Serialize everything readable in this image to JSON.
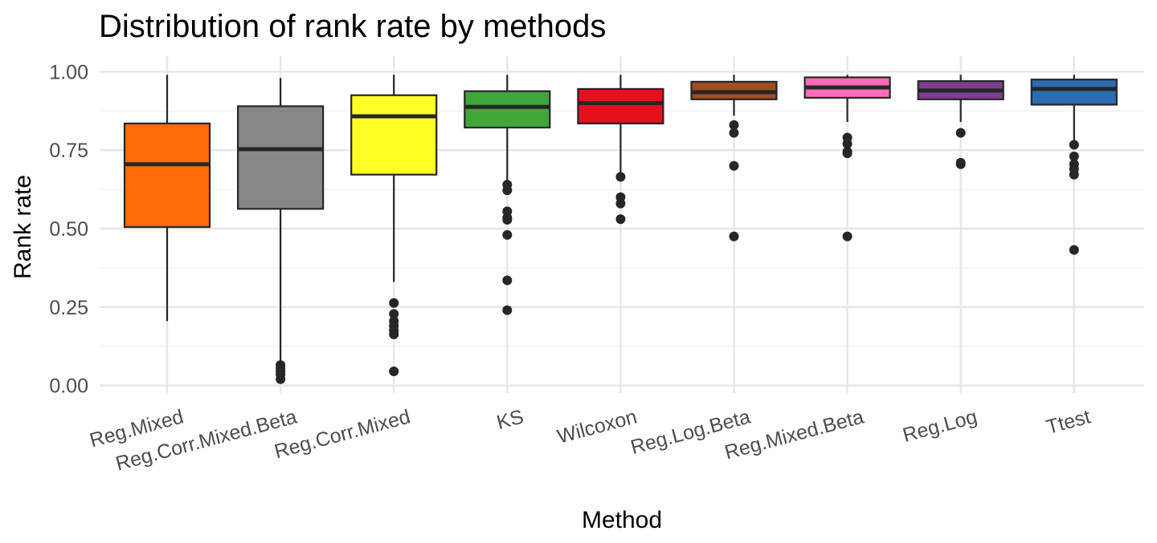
{
  "chart_data": {
    "type": "boxplot",
    "title": "Distribution of rank rate by methods",
    "xlabel": "Method",
    "ylabel": "Rank rate",
    "ylim": [
      0,
      1
    ],
    "y_ticks": [
      "0.00",
      "0.25",
      "0.50",
      "0.75",
      "1.00"
    ],
    "y_tick_values": [
      0,
      0.25,
      0.5,
      0.75,
      1.0
    ],
    "grid": true,
    "legend": "none",
    "categories": [
      "Reg.Mixed",
      "Reg.Corr.Mixed.Beta",
      "Reg.Corr.Mixed",
      "KS",
      "Wilcoxon",
      "Reg.Log.Beta",
      "Reg.Mixed.Beta",
      "Reg.Log",
      "Ttest"
    ],
    "boxes": [
      {
        "category": "Reg.Mixed",
        "color": "#FF6C0A",
        "lower_whisker": 0.205,
        "q1": 0.505,
        "median": 0.705,
        "q3": 0.835,
        "upper_whisker": 0.99,
        "outliers": []
      },
      {
        "category": "Reg.Corr.Mixed.Beta",
        "color": "#878787",
        "lower_whisker": 0.07,
        "q1": 0.563,
        "median": 0.753,
        "q3": 0.89,
        "upper_whisker": 0.98,
        "outliers": [
          0.065,
          0.055,
          0.045,
          0.035,
          0.02
        ]
      },
      {
        "category": "Reg.Corr.Mixed",
        "color": "#FFFF25",
        "lower_whisker": 0.33,
        "q1": 0.672,
        "median": 0.858,
        "q3": 0.925,
        "upper_whisker": 0.99,
        "outliers": [
          0.263,
          0.228,
          0.205,
          0.19,
          0.175,
          0.163,
          0.045
        ]
      },
      {
        "category": "KS",
        "color": "#40A63A",
        "lower_whisker": 0.652,
        "q1": 0.822,
        "median": 0.888,
        "q3": 0.938,
        "upper_whisker": 0.99,
        "outliers": [
          0.64,
          0.622,
          0.555,
          0.535,
          0.528,
          0.48,
          0.335,
          0.24
        ]
      },
      {
        "category": "Wilcoxon",
        "color": "#E3101E",
        "lower_whisker": 0.675,
        "q1": 0.835,
        "median": 0.9,
        "q3": 0.945,
        "upper_whisker": 0.99,
        "outliers": [
          0.665,
          0.6,
          0.58,
          0.53
        ]
      },
      {
        "category": "Reg.Log.Beta",
        "color": "#9E4E1F",
        "lower_whisker": 0.86,
        "q1": 0.912,
        "median": 0.935,
        "q3": 0.968,
        "upper_whisker": 0.99,
        "outliers": [
          0.83,
          0.805,
          0.7,
          0.475
        ]
      },
      {
        "category": "Reg.Mixed.Beta",
        "color": "#FA6CB9",
        "lower_whisker": 0.84,
        "q1": 0.917,
        "median": 0.95,
        "q3": 0.982,
        "upper_whisker": 0.99,
        "outliers": [
          0.79,
          0.77,
          0.745,
          0.74,
          0.475
        ]
      },
      {
        "category": "Reg.Log",
        "color": "#7F3D8F",
        "lower_whisker": 0.84,
        "q1": 0.912,
        "median": 0.94,
        "q3": 0.97,
        "upper_whisker": 0.99,
        "outliers": [
          0.805,
          0.71,
          0.705
        ]
      },
      {
        "category": "Ttest",
        "color": "#2A6CB0",
        "lower_whisker": 0.78,
        "q1": 0.895,
        "median": 0.945,
        "q3": 0.975,
        "upper_whisker": 0.99,
        "outliers": [
          0.767,
          0.73,
          0.705,
          0.69,
          0.672,
          0.432
        ]
      }
    ]
  }
}
